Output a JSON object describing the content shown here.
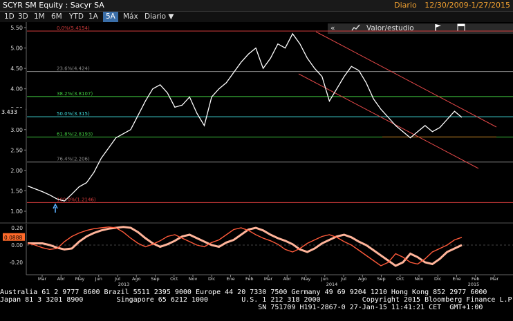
{
  "header": {
    "ticker": "SCYR SM Equity : Sacyr SA",
    "frequency": "Diario",
    "date_range": "12/30/2009-1/27/2015"
  },
  "toolbar": {
    "buttons": [
      "1D",
      "3D",
      "1M",
      "6M",
      "YTD",
      "1A",
      "5A",
      "Máx"
    ],
    "active": "5A",
    "period_select": "Diario ▼",
    "back_icon": "«",
    "chart_icon": "chart-line-icon",
    "value_study": "Valor/estudio",
    "flag_icon": "flag-icon",
    "window_icon": "window-icon"
  },
  "colors": {
    "price": "#ffffff",
    "fib_red": "#d23b3b",
    "fib_green": "#3fc83f",
    "fib_cyan": "#3fd7d7",
    "channel": "#e34848",
    "support": "#cc7722",
    "osc_main": "#ff5a3a",
    "osc_signal": "#ffb49a"
  },
  "chart_data": {
    "type": "line",
    "y_ticks": [
      "5.50",
      "5.00",
      "4.50",
      "4.00",
      "3.50",
      "3.00",
      "2.50",
      "2.00",
      "1.50",
      "1.00"
    ],
    "last_price_label": "3.433",
    "fib_labels": [
      "0.0%(5.4154)",
      "23.6%(4.424)",
      "38.2%(3.8107)",
      "50.0%(3.315)",
      "61.8%(2.8193)",
      "76.4%(2.206)",
      "100.0%(1.2146)"
    ],
    "fib_values": [
      5.4154,
      4.424,
      3.8107,
      3.315,
      2.8193,
      2.206,
      1.2146
    ],
    "support_level": 2.82,
    "x_months": [
      "Mar",
      "Abr",
      "May",
      "Jun",
      "Jul",
      "Ago",
      "Sep",
      "Oct",
      "Nov",
      "Dic",
      "Ene",
      "Feb",
      "Mar",
      "Abr",
      "May",
      "Jun",
      "Jul",
      "Ago",
      "Sep",
      "Oct",
      "Nov",
      "Dic",
      "Ene",
      "Feb",
      "Mar"
    ],
    "x_years": [
      "2013",
      "2014",
      "2015"
    ],
    "price_series": [
      1.62,
      1.55,
      1.48,
      1.4,
      1.3,
      1.25,
      1.42,
      1.6,
      1.7,
      1.95,
      2.3,
      2.55,
      2.8,
      2.9,
      3.0,
      3.35,
      3.7,
      4.0,
      4.1,
      3.9,
      3.55,
      3.6,
      3.8,
      3.4,
      3.1,
      3.8,
      4.0,
      4.15,
      4.4,
      4.65,
      4.85,
      5.0,
      4.5,
      4.75,
      5.1,
      5.0,
      5.35,
      5.1,
      4.75,
      4.5,
      4.3,
      3.7,
      4.0,
      4.3,
      4.55,
      4.45,
      4.15,
      3.75,
      3.5,
      3.3,
      3.1,
      2.95,
      2.8,
      2.95,
      3.1,
      2.95,
      3.05,
      3.25,
      3.45,
      3.3
    ],
    "osc_y_ticks": [
      "0.20",
      "0.00",
      "-0.20"
    ],
    "osc_last_label": "0.0888",
    "osc_series": [
      0.02,
      0.0,
      -0.03,
      -0.05,
      -0.04,
      0.04,
      0.1,
      0.14,
      0.17,
      0.19,
      0.2,
      0.21,
      0.2,
      0.15,
      0.08,
      0.02,
      -0.02,
      0.01,
      0.05,
      0.1,
      0.12,
      0.08,
      0.04,
      0.0,
      -0.02,
      0.03,
      0.06,
      0.12,
      0.18,
      0.2,
      0.17,
      0.12,
      0.08,
      0.05,
      0.01,
      -0.05,
      -0.08,
      -0.04,
      0.02,
      0.06,
      0.1,
      0.12,
      0.09,
      0.04,
      0.0,
      -0.06,
      -0.12,
      -0.18,
      -0.24,
      -0.2,
      -0.1,
      -0.14,
      -0.2,
      -0.22,
      -0.16,
      -0.08,
      -0.04,
      0.0,
      0.06,
      0.09
    ]
  },
  "footer": {
    "line1": "Australia 61 2 9777 8600 Brazil 5511 2395 9000 Europe 44 20 7330 7500 Germany 49 69 9204 1210 Hong Kong 852 2977 6000",
    "line2": "Japan 81 3 3201 8900        Singapore 65 6212 1000        U.S. 1 212 318 2000          Copyright 2015 Bloomberg Finance L.P.",
    "line3": "                                                              SN 751709 H191-2867-0 27-Jan-15 11:41:21 CET  GMT+1:00"
  }
}
